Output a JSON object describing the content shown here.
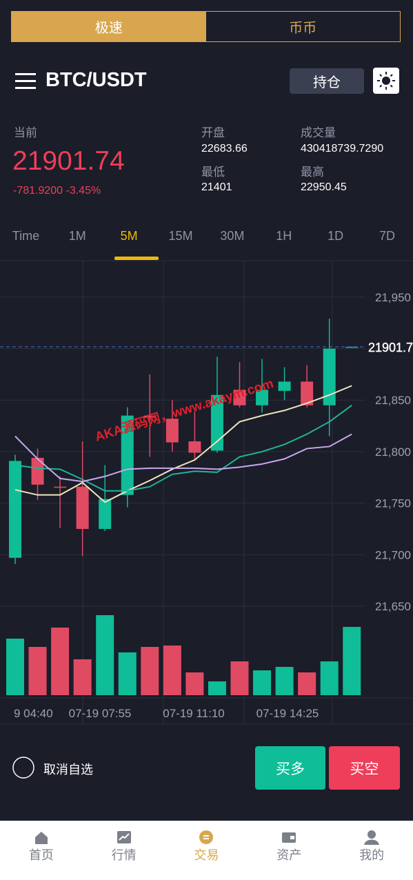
{
  "tabs": [
    "极速",
    "币币"
  ],
  "header": {
    "pair": "BTC/USDT",
    "position_button": "持仓"
  },
  "stats": {
    "current_label": "当前",
    "current_price": "21901.74",
    "change": "-781.9200 -3.45%",
    "open_label": "开盘",
    "open": "22683.66",
    "low_label": "最低",
    "low": "21401",
    "volume_label": "成交量",
    "volume": "430418739.7290",
    "high_label": "最高",
    "high": "22950.45"
  },
  "intervals": [
    "Time",
    "1M",
    "5M",
    "15M",
    "30M",
    "1H",
    "1D",
    "7D"
  ],
  "chart_data": {
    "type": "candlestick",
    "ylim": [
      21559,
      21984
    ],
    "yticks": [
      {
        "value": 21650,
        "label": "21,650"
      },
      {
        "value": 21700,
        "label": "21,700"
      },
      {
        "value": 21750,
        "label": "21,750"
      },
      {
        "value": 21800,
        "label": "21,800"
      },
      {
        "value": 21850,
        "label": "21,850"
      },
      {
        "value": 21900,
        "label": "21,900"
      },
      {
        "value": 21950,
        "label": "21,950"
      }
    ],
    "xlabels": [
      "9 04:40",
      "07-19 07:55",
      "07-19 11:10",
      "07-19 14:25"
    ],
    "open": [
      21697,
      21794,
      21766,
      21766,
      21725,
      21758,
      21835,
      21832,
      21810,
      21801,
      21860,
      21845,
      21859,
      21868,
      21845,
      21901
    ],
    "close": [
      21791,
      21768,
      21765,
      21725,
      21754,
      21835,
      21833,
      21809,
      21799,
      21855,
      21845,
      21860,
      21868,
      21845,
      21900,
      21901.74
    ],
    "high": [
      21797,
      21803,
      21776,
      21810,
      21787,
      21843,
      21875,
      21850,
      21839,
      21892,
      21887,
      21890,
      21882,
      21884,
      21929,
      21902
    ],
    "low": [
      21691,
      21753,
      21726,
      21699,
      21723,
      21746,
      21795,
      21800,
      21793,
      21799,
      21843,
      21838,
      21850,
      21843,
      21815,
      21901
    ],
    "volume": [
      82,
      70,
      98,
      52,
      116,
      62,
      70,
      72,
      33,
      20,
      49,
      36,
      41,
      33,
      49,
      99
    ],
    "up_color": "#0fbd98",
    "down_color": "#e04b63",
    "ma": [
      {
        "color": "#f2e6c0",
        "values": [
          21763,
          21758,
          21758,
          21770,
          21751,
          21762,
          21772,
          21783,
          21792,
          21810,
          21829,
          21835,
          21840,
          21847,
          21855,
          21864
        ]
      },
      {
        "color": "#1fb59a",
        "values": [
          21787,
          21784,
          21783,
          21773,
          21762,
          21762,
          21766,
          21778,
          21781,
          21780,
          21795,
          21800,
          21807,
          21817,
          21829,
          21845
        ]
      },
      {
        "color": "#c8a8ef",
        "values": [
          21815,
          21793,
          21774,
          21771,
          21776,
          21783,
          21784,
          21784,
          21784,
          21783,
          21785,
          21788,
          21793,
          21803,
          21805,
          21817
        ]
      }
    ],
    "last_price": 21901.74,
    "watermark": "AKA源码网，www.akaym.com"
  },
  "bottom": {
    "favorite": "取消自选",
    "buy_long": "买多",
    "buy_short": "买空"
  },
  "nav": [
    "首页",
    "行情",
    "交易",
    "资产",
    "我的"
  ]
}
